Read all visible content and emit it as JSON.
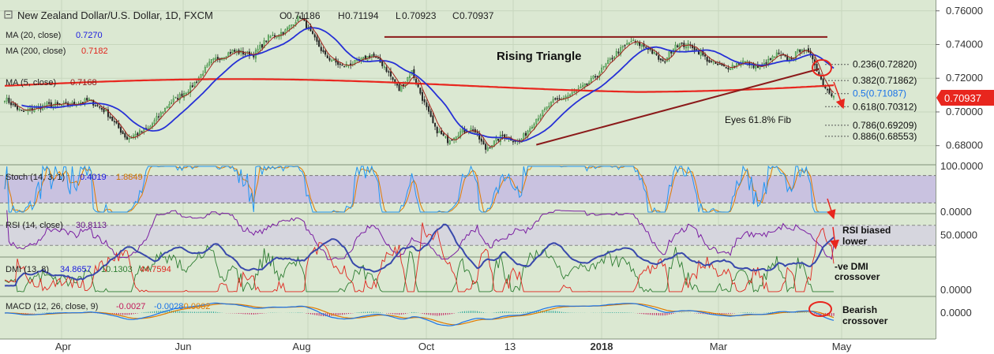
{
  "title": "New Zealand Dollar/U.S. Dollar, 1D, FXCM",
  "ohlc": {
    "o_label": "O",
    "o": "0.71186",
    "h_label": "H",
    "h": "0.71194",
    "l_label": "L",
    "l": "0.70923",
    "c_label": "C",
    "c": "0.70937"
  },
  "indicators": [
    {
      "label": "MA (20, close)",
      "value": "0.7270",
      "color": "#1a1adf"
    },
    {
      "label": "MA (200, close)",
      "value": "0.7182",
      "color": "#e0261e"
    },
    {
      "label": "MA (5, close)",
      "value": "0.7168",
      "color": "#8b1a1a"
    }
  ],
  "last_price": "0.70937",
  "colors": {
    "background": "#dbe8d2",
    "bull": "#2e7d32",
    "bear": "#222222",
    "ma20": "#2630d6",
    "ma200": "#e8261e",
    "ma5": "#a3241c",
    "trend": "#8b1a1a",
    "stoch_band": "#c9c2e0",
    "rsi_band": "#d6d6de",
    "price_tag": "#e8261e",
    "annotation": "#e8261e"
  },
  "chart_data": {
    "type": "candlestick",
    "panes": [
      "price",
      "stoch",
      "rsi",
      "dmi",
      "macd"
    ],
    "price_axis": {
      "range": [
        0.6705,
        0.7655
      ],
      "ticks": [
        "0.68000",
        "0.70000",
        "0.72000",
        "0.74000",
        "0.76000"
      ],
      "tick_values": [
        0.68,
        0.7,
        0.72,
        0.74,
        0.76
      ]
    },
    "x_ticks": [
      "Apr",
      "Jun",
      "Aug",
      "Oct",
      "13",
      "2018",
      "Mar",
      "May"
    ],
    "path": [
      [
        0,
        0.708
      ],
      [
        8,
        0.7
      ],
      [
        20,
        0.704
      ],
      [
        30,
        0.704
      ],
      [
        40,
        0.707
      ],
      [
        48,
        0.7
      ],
      [
        58,
        0.684
      ],
      [
        68,
        0.69
      ],
      [
        78,
        0.705
      ],
      [
        88,
        0.714
      ],
      [
        98,
        0.73
      ],
      [
        108,
        0.736
      ],
      [
        118,
        0.734
      ],
      [
        125,
        0.744
      ],
      [
        133,
        0.748
      ],
      [
        140,
        0.757
      ],
      [
        146,
        0.745
      ],
      [
        152,
        0.733
      ],
      [
        160,
        0.727
      ],
      [
        168,
        0.73
      ],
      [
        174,
        0.734
      ],
      [
        180,
        0.727
      ],
      [
        187,
        0.713
      ],
      [
        193,
        0.724
      ],
      [
        198,
        0.708
      ],
      [
        204,
        0.69
      ],
      [
        210,
        0.683
      ],
      [
        216,
        0.688
      ],
      [
        222,
        0.69
      ],
      [
        228,
        0.678
      ],
      [
        236,
        0.686
      ],
      [
        244,
        0.682
      ],
      [
        252,
        0.696
      ],
      [
        260,
        0.706
      ],
      [
        268,
        0.71
      ],
      [
        276,
        0.716
      ],
      [
        283,
        0.725
      ],
      [
        290,
        0.735
      ],
      [
        297,
        0.742
      ],
      [
        305,
        0.738
      ],
      [
        312,
        0.729
      ],
      [
        318,
        0.74
      ],
      [
        326,
        0.739
      ],
      [
        334,
        0.73
      ],
      [
        342,
        0.726
      ],
      [
        350,
        0.73
      ],
      [
        358,
        0.726
      ],
      [
        366,
        0.734
      ],
      [
        372,
        0.731
      ],
      [
        378,
        0.738
      ],
      [
        383,
        0.732
      ],
      [
        388,
        0.716
      ],
      [
        391,
        0.712
      ],
      [
        393,
        0.7094
      ]
    ],
    "moving_averages": [
      {
        "name": "MA (20, close)",
        "value": 0.727
      },
      {
        "name": "MA (200, close)",
        "value": 0.7182
      },
      {
        "name": "MA (5, close)",
        "value": 0.7168
      }
    ],
    "trendlines": [
      {
        "from": [
          180,
          0.7445
        ],
        "to": [
          390,
          0.7445
        ]
      },
      {
        "from": [
          252,
          0.6805
        ],
        "to": [
          386,
          0.7255
        ]
      }
    ],
    "fib_levels": [
      {
        "label": "0.236(0.72820)",
        "value": 0.7282
      },
      {
        "label": "0.382(0.71862)",
        "value": 0.71862
      },
      {
        "label": "0.5(0.71087)",
        "value": 0.71087
      },
      {
        "label": "0.618(0.70312)",
        "value": 0.70312
      },
      {
        "label": "0.786(0.69209)",
        "value": 0.69209
      },
      {
        "label": "0.886(0.68553)",
        "value": 0.68553
      }
    ],
    "annotations": {
      "pattern": "Rising Triangle",
      "fib_note": "Eyes 61.8% Fib",
      "rsi_note_1": "RSI biased",
      "rsi_note_2": "lower",
      "dmi_note_1": "-ve DMI",
      "dmi_note_2": "crossover",
      "macd_note_1": "Bearish",
      "macd_note_2": "crossover"
    },
    "stoch": {
      "label": "Stoch (14, 3, 1)",
      "k": "0.4019",
      "d": "1.8849",
      "ticks": [
        "100.0000",
        "0.0000"
      ],
      "bands": [
        80,
        20
      ]
    },
    "rsi": {
      "label": "RSI (14, close)",
      "value": "30.8113",
      "ticks": [
        "50.0000"
      ]
    },
    "dmi": {
      "label": "DMI (13, 8)",
      "adx": "34.8657",
      "plus_di": "10.1303",
      "minus_di": "44.7594",
      "ticks": [
        "0.0000"
      ]
    },
    "macd": {
      "label": "MACD (12, 26, close, 9)",
      "hist": "-0.0027",
      "macd": "-0.0028",
      "signal": "-0.0002",
      "ticks": [
        "0.0000"
      ]
    }
  }
}
